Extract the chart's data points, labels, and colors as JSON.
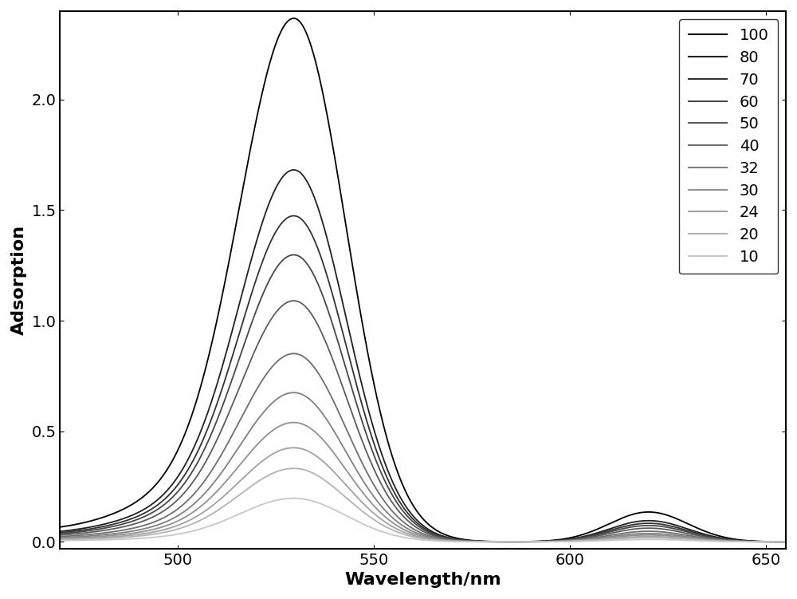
{
  "xlabel": "Wavelength/nm",
  "ylabel": "Adsorption",
  "xlim": [
    470,
    655
  ],
  "ylim": [
    -0.03,
    2.4
  ],
  "xticks": [
    500,
    550,
    600,
    650
  ],
  "yticks": [
    0,
    0.5,
    1.0,
    1.5,
    2.0
  ],
  "legend_labels": [
    "100",
    "80",
    "70",
    "60",
    "50",
    "40",
    "32",
    "30",
    "24",
    "20",
    "10"
  ],
  "peak1_wavelength": 530,
  "peak2_wavelength": 620,
  "peak1_amplitudes": [
    2.28,
    1.62,
    1.42,
    1.25,
    1.05,
    0.82,
    0.65,
    0.52,
    0.41,
    0.32,
    0.19
  ],
  "peak2_amplitudes": [
    0.135,
    0.096,
    0.084,
    0.074,
    0.062,
    0.048,
    0.038,
    0.031,
    0.024,
    0.019,
    0.011
  ],
  "gray_values": [
    0.0,
    0.13,
    0.2,
    0.28,
    0.36,
    0.43,
    0.5,
    0.57,
    0.63,
    0.7,
    0.78
  ],
  "figsize": [
    10.0,
    7.51
  ],
  "dpi": 100,
  "xlabel_fontsize": 16,
  "ylabel_fontsize": 16,
  "tick_fontsize": 14,
  "legend_fontsize": 14,
  "xlabel_fontweight": "bold",
  "ylabel_fontweight": "bold"
}
